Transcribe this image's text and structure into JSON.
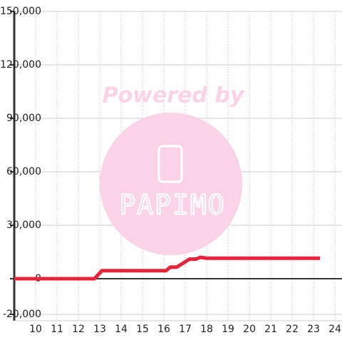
{
  "chart_data": {
    "type": "line",
    "watermark": [
      "Powered by",
      "PAPIMO"
    ],
    "x": [
      9,
      12.75,
      13.1,
      16.1,
      16.3,
      16.6,
      17.0,
      17.2,
      17.5,
      17.7,
      18.0,
      23.3
    ],
    "series": [
      {
        "color": "#e8243a",
        "values": [
          0,
          0,
          4500,
          4500,
          6500,
          6500,
          9500,
          11000,
          11000,
          12000,
          11500,
          11500
        ]
      }
    ],
    "xlim": [
      9,
      24.33
    ],
    "xticks": [
      10,
      11,
      12,
      13,
      14,
      15,
      16,
      17,
      18,
      19,
      20,
      21,
      22,
      23,
      24
    ],
    "ylim": [
      -20000,
      150000
    ],
    "yticks": [
      {
        "value": -20000,
        "label": "-20,000"
      },
      0,
      {
        "value": 30000,
        "label": "30,000"
      },
      {
        "value": 60000,
        "label": "60,000"
      },
      {
        "value": 90000,
        "label": "90,000"
      },
      {
        "value": 120000,
        "label": "120,000"
      },
      {
        "value": 150000,
        "label": "150,000"
      }
    ],
    "grid": true
  }
}
